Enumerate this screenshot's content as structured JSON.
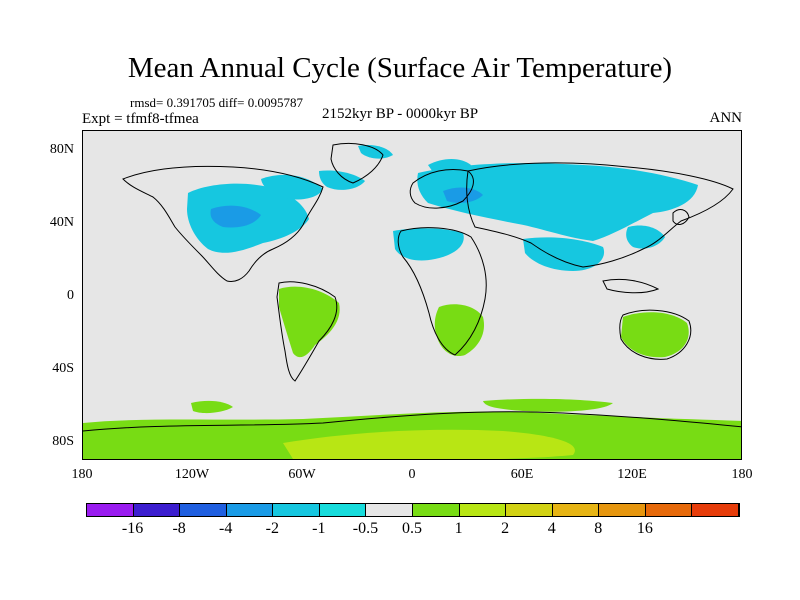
{
  "header": {
    "title": "Mean Annual Cycle (Surface Air Temperature)",
    "stats": "rmsd= 0.391705 diff= 0.0095787",
    "experiment": "Expt = tfmf8-tfmea",
    "period": "2152kyr BP - 0000kyr BP",
    "season": "ANN"
  },
  "map": {
    "lat_ticks": [
      "80N",
      "40N",
      "0",
      "40S",
      "80S"
    ],
    "lon_ticks": [
      "180",
      "120W",
      "60W",
      "0",
      "60E",
      "120E",
      "180"
    ],
    "background_color": "#e6e6e6"
  },
  "colorbar": {
    "colors": [
      "#9a1cf0",
      "#3c1ecf",
      "#1f5fe0",
      "#1a9be6",
      "#16c7e0",
      "#17dcdc",
      "#e6e6e6",
      "#78dc14",
      "#b8e614",
      "#d2d214",
      "#e6b414",
      "#e6960f",
      "#e6690a",
      "#e63c0a"
    ],
    "labels": [
      "-16",
      "-8",
      "-4",
      "-2",
      "-1",
      "-0.5",
      "0.5",
      "1",
      "2",
      "4",
      "8",
      "16"
    ]
  }
}
